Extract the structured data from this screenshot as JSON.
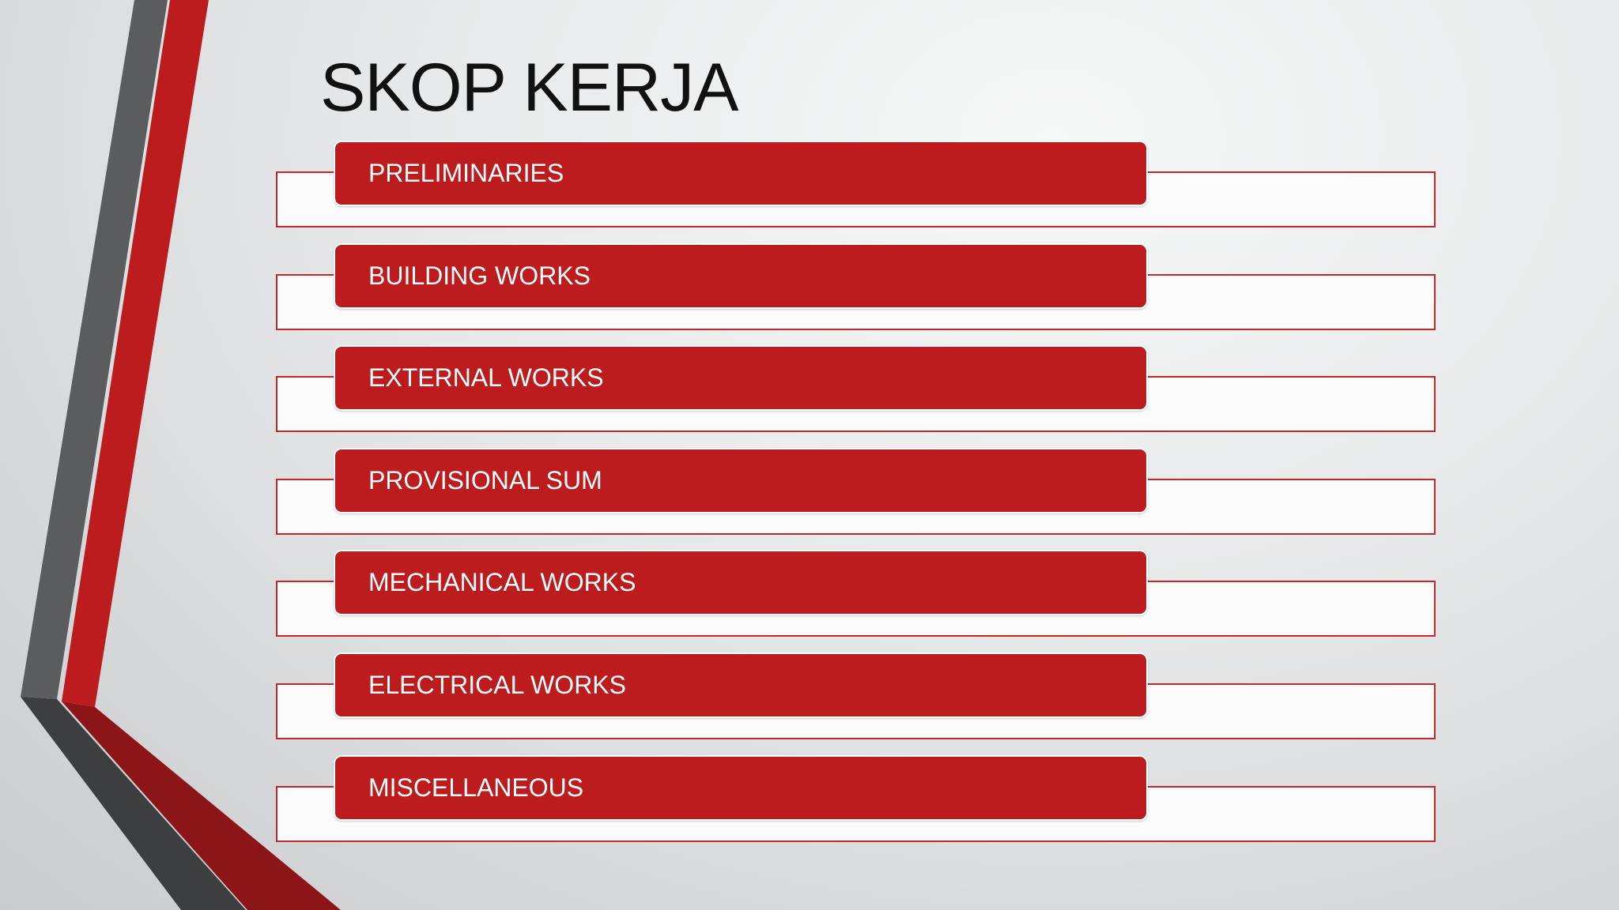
{
  "slide": {
    "title": "SKOP KERJA",
    "items": [
      {
        "label": "PRELIMINARIES"
      },
      {
        "label": "BUILDING WORKS"
      },
      {
        "label": "EXTERNAL WORKS"
      },
      {
        "label": "PROVISIONAL SUM"
      },
      {
        "label": "MECHANICAL WORKS"
      },
      {
        "label": "ELECTRICAL WORKS"
      },
      {
        "label": "MISCELLANEOUS"
      }
    ]
  },
  "colors": {
    "accent_red": "#bc1c1d",
    "stripe_gray": "#5a5b5d",
    "text": "#111111"
  }
}
